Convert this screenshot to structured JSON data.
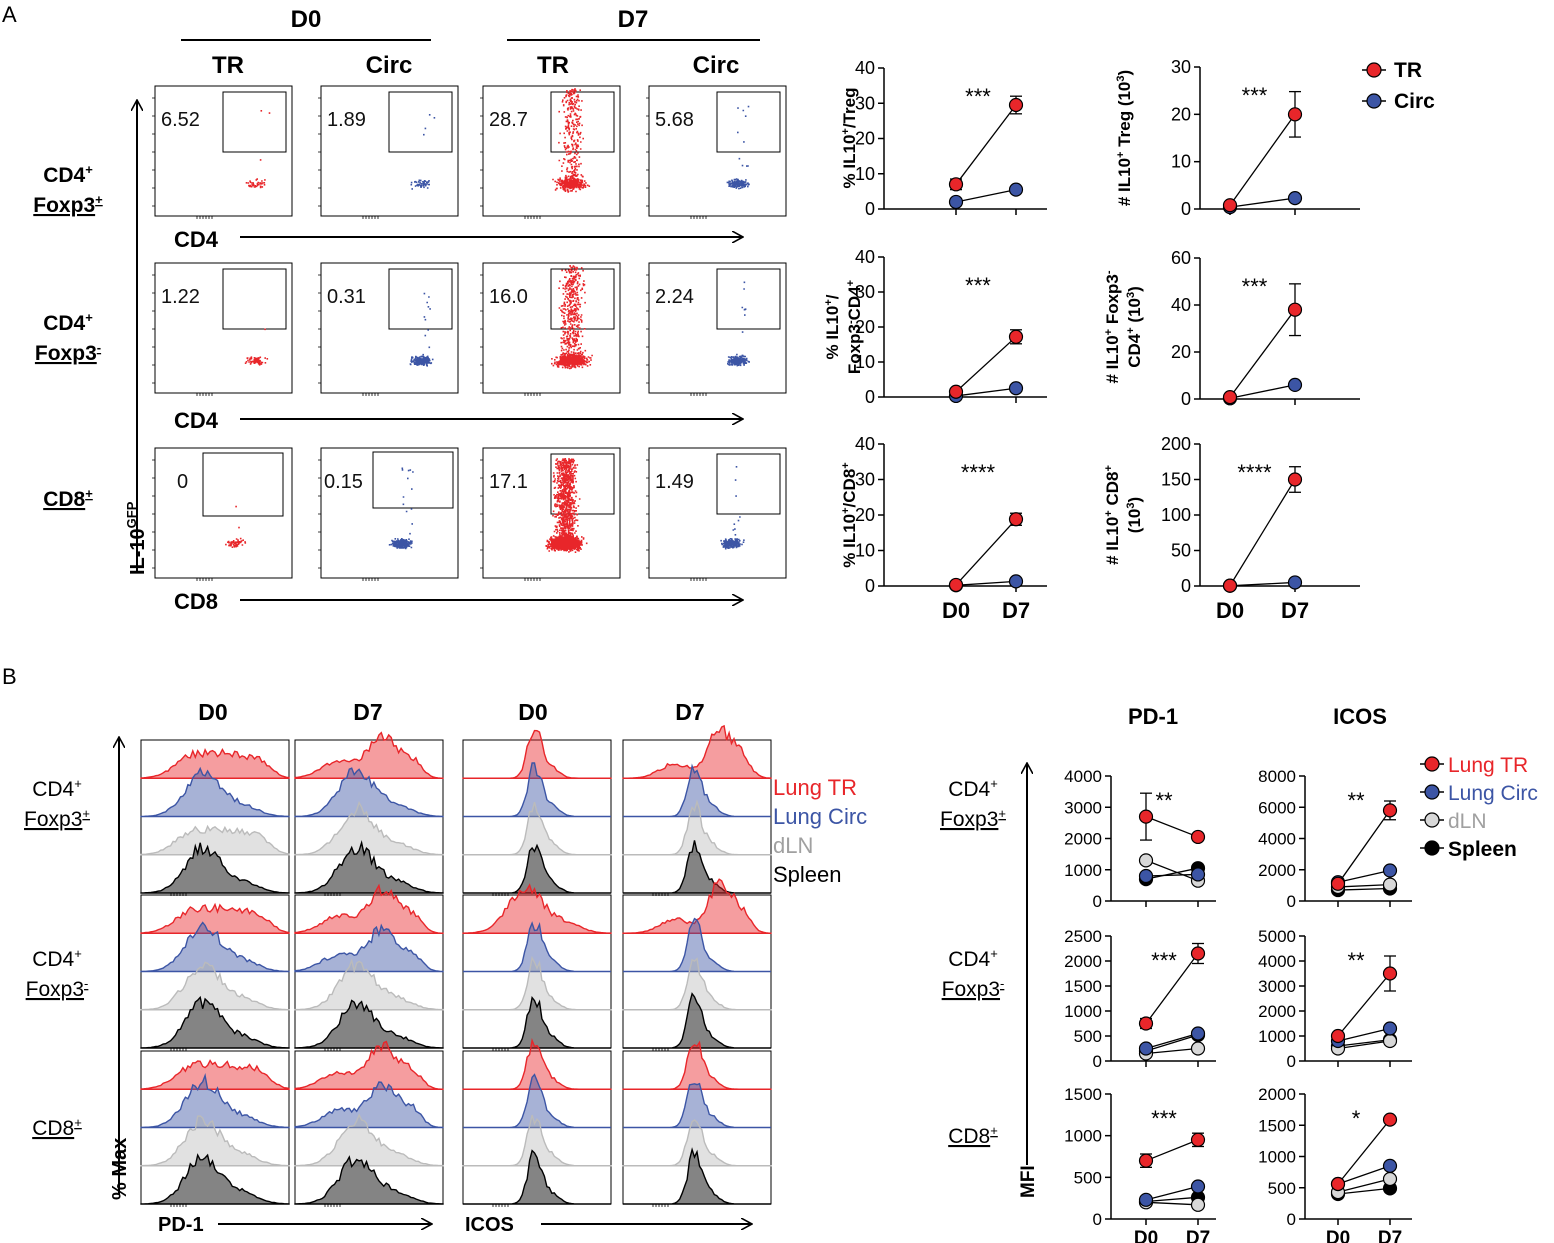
{
  "panel_a": {
    "label": "A",
    "day_headers": [
      "D0",
      "D7"
    ],
    "col_headers": [
      "TR",
      "Circ",
      "TR",
      "Circ"
    ],
    "row_labels": [
      {
        "main": "CD4",
        "sup": "+",
        "sub_main": "Foxp3",
        "sub_sup": "+"
      },
      {
        "main": "CD4",
        "sup": "+",
        "sub_main": "Foxp3",
        "sub_sup": "-"
      },
      {
        "main": "CD8",
        "sup": "+",
        "sub_main": "",
        "sub_sup": ""
      }
    ],
    "x_axis_labels": [
      "CD4",
      "CD4",
      "CD8"
    ],
    "y_axis_label_main": "IL-10",
    "y_axis_label_sup": "GFP",
    "gate_values": [
      [
        "6.52",
        "1.89",
        "28.7",
        "5.68"
      ],
      [
        "1.22",
        "0.31",
        "16.0",
        "2.24"
      ],
      [
        "0",
        "0.15",
        "17.1",
        "1.49"
      ]
    ],
    "legend": [
      {
        "label": "TR",
        "color": "#e8262a"
      },
      {
        "label": "Circ",
        "color": "#3c55a5"
      }
    ]
  },
  "panel_b": {
    "label": "B",
    "hist_day_headers": [
      "D0",
      "D7",
      "D0",
      "D7"
    ],
    "row_labels": [
      {
        "main": "CD4",
        "sup": "+",
        "sub_main": "Foxp3",
        "sub_sup": "+"
      },
      {
        "main": "CD4",
        "sup": "+",
        "sub_main": "Foxp3",
        "sub_sup": "-"
      },
      {
        "main": "CD8",
        "sup": "+",
        "sub_main": "",
        "sub_sup": ""
      }
    ],
    "hist_legend": [
      {
        "label": "Lung TR",
        "color": "#e8262a"
      },
      {
        "label": "Lung Circ",
        "color": "#3c55a5"
      },
      {
        "label": "dLN",
        "color": "#a0a0a0"
      },
      {
        "label": "Spleen",
        "color": "#000000"
      }
    ],
    "y_axis_label": "% Max",
    "x_axis_labels": [
      "PD-1",
      "ICOS"
    ],
    "mfi_col_headers": [
      "PD-1",
      "ICOS"
    ],
    "mfi_y_label": "MFI",
    "mfi_legend": [
      {
        "label": "Lung TR",
        "color": "#e8262a"
      },
      {
        "label": "Lung Circ",
        "color": "#3c55a5"
      },
      {
        "label": "dLN",
        "color": "#a0a0a0"
      },
      {
        "label": "Spleen",
        "color": "#000000"
      }
    ]
  },
  "chart_data": [
    {
      "type": "line",
      "id": "a_pct_treg",
      "ylabel": "% IL10+/Treg",
      "x": [
        "D0",
        "D7"
      ],
      "ylim": [
        0,
        40
      ],
      "yticks": [
        0,
        10,
        20,
        30,
        40
      ],
      "significance": "***",
      "series": [
        {
          "name": "TR",
          "values": [
            7,
            29.5
          ],
          "errors": [
            1.5,
            2.5
          ]
        },
        {
          "name": "Circ",
          "values": [
            2,
            5.5
          ],
          "errors": [
            0,
            0
          ]
        }
      ]
    },
    {
      "type": "line",
      "id": "a_num_treg",
      "ylabel": "# IL10+ Treg (10^3)",
      "x": [
        "D0",
        "D7"
      ],
      "ylim": [
        0,
        30
      ],
      "yticks": [
        0,
        10,
        20,
        30
      ],
      "significance": "***",
      "series": [
        {
          "name": "TR",
          "values": [
            0.8,
            20
          ],
          "errors": [
            0,
            4.8
          ]
        },
        {
          "name": "Circ",
          "values": [
            0.4,
            2.3
          ],
          "errors": [
            0,
            0
          ]
        }
      ]
    },
    {
      "type": "line",
      "id": "a_pct_foxp3neg",
      "ylabel": "% IL10+/ Foxp3-CD4+",
      "x": [
        "D0",
        "D7"
      ],
      "ylim": [
        0,
        40
      ],
      "yticks": [
        0,
        10,
        20,
        30,
        40
      ],
      "significance": "***",
      "series": [
        {
          "name": "TR",
          "values": [
            1.5,
            17.2
          ],
          "errors": [
            0,
            2
          ]
        },
        {
          "name": "Circ",
          "values": [
            0.3,
            2.5
          ],
          "errors": [
            0,
            0
          ]
        }
      ]
    },
    {
      "type": "line",
      "id": "a_num_foxp3neg",
      "ylabel": "# IL10+ Foxp3- CD4+ (10^3)",
      "x": [
        "D0",
        "D7"
      ],
      "ylim": [
        0,
        60
      ],
      "yticks": [
        0,
        20,
        40,
        60
      ],
      "significance": "***",
      "series": [
        {
          "name": "TR",
          "values": [
            0.8,
            38
          ],
          "errors": [
            0,
            11
          ]
        },
        {
          "name": "Circ",
          "values": [
            0.3,
            6
          ],
          "errors": [
            0,
            0
          ]
        }
      ]
    },
    {
      "type": "line",
      "id": "a_pct_cd8",
      "ylabel": "% IL10+/CD8+",
      "x": [
        "D0",
        "D7"
      ],
      "ylim": [
        0,
        40
      ],
      "yticks": [
        0,
        10,
        20,
        30,
        40
      ],
      "significance": "****",
      "series": [
        {
          "name": "TR",
          "values": [
            0.3,
            18.8
          ],
          "errors": [
            0,
            1.7
          ]
        },
        {
          "name": "Circ",
          "values": [
            0.2,
            1.3
          ],
          "errors": [
            0,
            0
          ]
        }
      ]
    },
    {
      "type": "line",
      "id": "a_num_cd8",
      "ylabel": "# IL10+ CD8+ (10^3)",
      "x": [
        "D0",
        "D7"
      ],
      "ylim": [
        0,
        200
      ],
      "yticks": [
        0,
        50,
        100,
        150,
        200
      ],
      "significance": "****",
      "series": [
        {
          "name": "TR",
          "values": [
            0.5,
            150
          ],
          "errors": [
            0,
            18
          ]
        },
        {
          "name": "Circ",
          "values": [
            0.3,
            5
          ],
          "errors": [
            0,
            0
          ]
        }
      ]
    },
    {
      "type": "line",
      "id": "b_pd1_foxp3pos",
      "title": "PD-1",
      "ylabel": "MFI",
      "x": [
        "D0",
        "D7"
      ],
      "ylim": [
        0,
        4000
      ],
      "yticks": [
        0,
        1000,
        2000,
        3000,
        4000
      ],
      "significance": "**",
      "series": [
        {
          "name": "Lung TR",
          "values": [
            2700,
            2050
          ],
          "errors": [
            750,
            0
          ]
        },
        {
          "name": "Lung Circ",
          "values": [
            800,
            850
          ],
          "errors": [
            0,
            0
          ]
        },
        {
          "name": "dLN",
          "values": [
            1300,
            650
          ],
          "errors": [
            0,
            0
          ]
        },
        {
          "name": "Spleen",
          "values": [
            700,
            1050
          ],
          "errors": [
            0,
            0
          ]
        }
      ]
    },
    {
      "type": "line",
      "id": "b_icos_foxp3pos",
      "title": "ICOS",
      "ylabel": "MFI",
      "x": [
        "D0",
        "D7"
      ],
      "ylim": [
        0,
        8000
      ],
      "yticks": [
        0,
        2000,
        4000,
        6000,
        8000
      ],
      "significance": "**",
      "series": [
        {
          "name": "Lung TR",
          "values": [
            1100,
            5800
          ],
          "errors": [
            0,
            600
          ]
        },
        {
          "name": "Lung Circ",
          "values": [
            1200,
            1950
          ],
          "errors": [
            0,
            0
          ]
        },
        {
          "name": "dLN",
          "values": [
            900,
            1050
          ],
          "errors": [
            0,
            0
          ]
        },
        {
          "name": "Spleen",
          "values": [
            700,
            800
          ],
          "errors": [
            0,
            0
          ]
        }
      ]
    },
    {
      "type": "line",
      "id": "b_pd1_foxp3neg",
      "ylabel": "MFI",
      "x": [
        "D0",
        "D7"
      ],
      "ylim": [
        0,
        2500
      ],
      "yticks": [
        0,
        500,
        1000,
        1500,
        2000,
        2500
      ],
      "significance": "***",
      "series": [
        {
          "name": "Lung TR",
          "values": [
            750,
            2150
          ],
          "errors": [
            100,
            200
          ]
        },
        {
          "name": "Lung Circ",
          "values": [
            250,
            550
          ],
          "errors": [
            0,
            0
          ]
        },
        {
          "name": "dLN",
          "values": [
            150,
            250
          ],
          "errors": [
            0,
            0
          ]
        },
        {
          "name": "Spleen",
          "values": [
            200,
            520
          ],
          "errors": [
            0,
            0
          ]
        }
      ]
    },
    {
      "type": "line",
      "id": "b_icos_foxp3neg",
      "ylabel": "MFI",
      "x": [
        "D0",
        "D7"
      ],
      "ylim": [
        0,
        5000
      ],
      "yticks": [
        0,
        1000,
        2000,
        3000,
        4000,
        5000
      ],
      "significance": "**",
      "series": [
        {
          "name": "Lung TR",
          "values": [
            1000,
            3500
          ],
          "errors": [
            0,
            700
          ]
        },
        {
          "name": "Lung Circ",
          "values": [
            800,
            1300
          ],
          "errors": [
            0,
            0
          ]
        },
        {
          "name": "dLN",
          "values": [
            500,
            800
          ],
          "errors": [
            0,
            0
          ]
        },
        {
          "name": "Spleen",
          "values": [
            600,
            850
          ],
          "errors": [
            0,
            0
          ]
        }
      ]
    },
    {
      "type": "line",
      "id": "b_pd1_cd8",
      "ylabel": "MFI",
      "x": [
        "D0",
        "D7"
      ],
      "ylim": [
        0,
        1500
      ],
      "yticks": [
        0,
        500,
        1000,
        1500
      ],
      "significance": "***",
      "series": [
        {
          "name": "Lung TR",
          "values": [
            700,
            950
          ],
          "errors": [
            80,
            80
          ]
        },
        {
          "name": "Lung Circ",
          "values": [
            230,
            390
          ],
          "errors": [
            0,
            0
          ]
        },
        {
          "name": "dLN",
          "values": [
            200,
            170
          ],
          "errors": [
            0,
            0
          ]
        },
        {
          "name": "Spleen",
          "values": [
            210,
            260
          ],
          "errors": [
            0,
            0
          ]
        }
      ]
    },
    {
      "type": "line",
      "id": "b_icos_cd8",
      "ylabel": "MFI",
      "x": [
        "D0",
        "D7"
      ],
      "ylim": [
        0,
        2000
      ],
      "yticks": [
        0,
        500,
        1000,
        1500,
        2000
      ],
      "significance": "*",
      "series": [
        {
          "name": "Lung TR",
          "values": [
            560,
            1590
          ],
          "errors": [
            0,
            50
          ]
        },
        {
          "name": "Lung Circ",
          "values": [
            560,
            850
          ],
          "errors": [
            0,
            0
          ]
        },
        {
          "name": "dLN",
          "values": [
            430,
            640
          ],
          "errors": [
            0,
            0
          ]
        },
        {
          "name": "Spleen",
          "values": [
            400,
            490
          ],
          "errors": [
            0,
            0
          ]
        }
      ]
    }
  ]
}
